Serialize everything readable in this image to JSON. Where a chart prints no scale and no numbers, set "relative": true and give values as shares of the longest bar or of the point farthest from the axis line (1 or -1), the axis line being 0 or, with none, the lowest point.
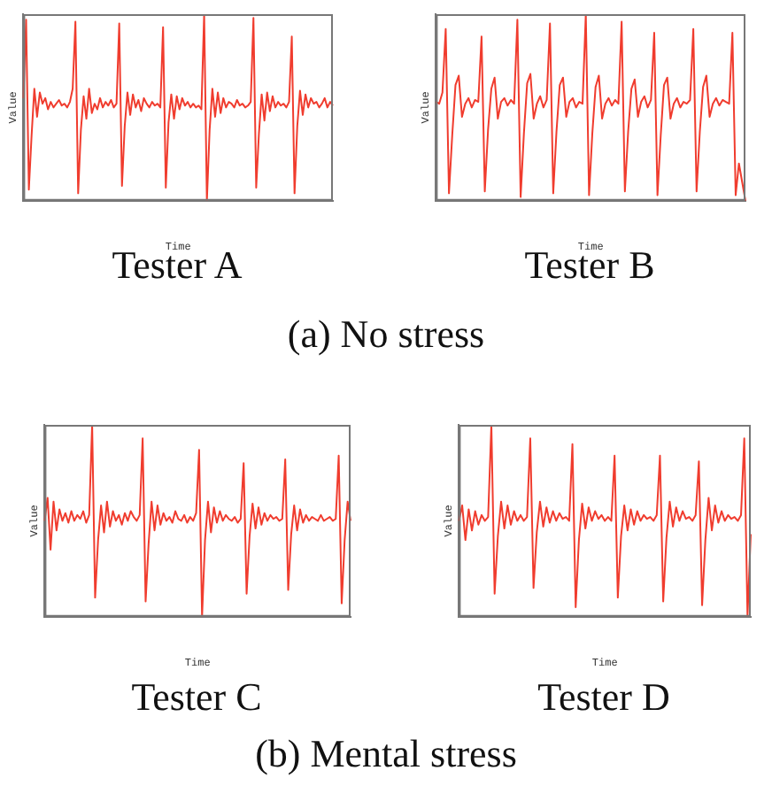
{
  "chart_data": [
    {
      "type": "line",
      "title": "Tester A",
      "xlabel": "Time",
      "ylabel": "Value",
      "relative": true,
      "grid": false,
      "legend": false,
      "marker": "none",
      "annotations": [
        "(a) No stress"
      ],
      "categories": [
        null,
        null,
        null,
        null,
        null,
        null,
        null,
        null,
        null,
        null,
        null,
        null,
        null,
        null,
        null,
        null,
        null,
        null,
        null,
        null,
        null,
        null,
        null,
        null,
        null,
        null,
        null,
        null,
        null,
        null,
        null,
        null,
        null,
        null,
        null,
        null,
        null,
        null,
        null,
        null,
        null,
        null,
        null,
        null,
        null,
        null,
        null,
        null,
        null,
        null,
        null,
        null,
        null,
        null,
        null,
        null,
        null,
        null,
        null,
        null,
        null,
        null,
        null,
        null,
        null,
        null,
        null,
        null,
        null,
        null,
        null,
        null,
        null,
        null,
        null,
        null,
        null,
        null,
        null,
        null,
        null,
        null,
        null,
        null,
        null,
        null,
        null,
        null,
        null,
        null,
        null,
        null,
        null,
        null,
        null,
        null,
        null,
        null,
        null,
        null,
        null,
        null,
        null,
        null,
        null,
        null,
        null,
        null,
        null,
        null,
        null,
        null,
        null,
        null
      ],
      "series": [
        {
          "color": "#f03c2e",
          "values": [
            0.55,
            0.97,
            0.06,
            0.35,
            0.6,
            0.45,
            0.58,
            0.52,
            0.55,
            0.49,
            0.53,
            0.5,
            0.52,
            0.54,
            0.51,
            0.52,
            0.5,
            0.53,
            0.6,
            0.96,
            0.04,
            0.38,
            0.56,
            0.44,
            0.6,
            0.47,
            0.52,
            0.49,
            0.55,
            0.5,
            0.53,
            0.51,
            0.54,
            0.5,
            0.52,
            0.95,
            0.08,
            0.4,
            0.58,
            0.46,
            0.57,
            0.5,
            0.54,
            0.48,
            0.55,
            0.52,
            0.5,
            0.53,
            0.51,
            0.52,
            0.5,
            0.93,
            0.07,
            0.42,
            0.57,
            0.44,
            0.56,
            0.49,
            0.55,
            0.51,
            0.53,
            0.5,
            0.52,
            0.5,
            0.51,
            0.49,
            1.0,
            0.0,
            0.38,
            0.6,
            0.45,
            0.58,
            0.47,
            0.55,
            0.5,
            0.53,
            0.52,
            0.5,
            0.54,
            0.51,
            0.52,
            0.5,
            0.51,
            0.53,
            0.98,
            0.07,
            0.36,
            0.57,
            0.43,
            0.58,
            0.48,
            0.56,
            0.5,
            0.53,
            0.51,
            0.52,
            0.5,
            0.53,
            0.88,
            0.04,
            0.4,
            0.59,
            0.46,
            0.57,
            0.5,
            0.55,
            0.52,
            0.53,
            0.5,
            0.52,
            0.55,
            0.5,
            0.53,
            0.51
          ]
        }
      ]
    },
    {
      "type": "line",
      "title": "Tester B",
      "xlabel": "Time",
      "ylabel": "Value",
      "relative": true,
      "grid": false,
      "legend": false,
      "marker": "none",
      "categories": [
        null,
        null,
        null,
        null,
        null,
        null,
        null,
        null,
        null,
        null,
        null,
        null,
        null,
        null,
        null,
        null,
        null,
        null,
        null,
        null,
        null,
        null,
        null,
        null,
        null,
        null,
        null,
        null,
        null,
        null,
        null,
        null,
        null,
        null,
        null,
        null,
        null,
        null,
        null,
        null,
        null,
        null,
        null,
        null,
        null,
        null,
        null,
        null,
        null,
        null,
        null,
        null,
        null,
        null,
        null,
        null,
        null,
        null,
        null,
        null,
        null,
        null,
        null,
        null,
        null,
        null,
        null,
        null,
        null,
        null,
        null,
        null,
        null,
        null,
        null,
        null,
        null,
        null,
        null,
        null,
        null,
        null,
        null,
        null,
        null,
        null,
        null,
        null,
        null,
        null,
        null,
        null,
        null,
        null,
        null,
        null
      ],
      "series": [
        {
          "color": "#f03c2e",
          "values": [
            0.53,
            0.52,
            0.58,
            0.92,
            0.04,
            0.35,
            0.62,
            0.67,
            0.45,
            0.52,
            0.55,
            0.5,
            0.54,
            0.53,
            0.88,
            0.05,
            0.38,
            0.6,
            0.66,
            0.44,
            0.53,
            0.55,
            0.51,
            0.54,
            0.52,
            0.97,
            0.02,
            0.36,
            0.63,
            0.68,
            0.44,
            0.52,
            0.56,
            0.5,
            0.54,
            0.95,
            0.04,
            0.37,
            0.62,
            0.66,
            0.45,
            0.53,
            0.55,
            0.5,
            0.53,
            0.52,
            1.0,
            0.03,
            0.36,
            0.61,
            0.67,
            0.44,
            0.52,
            0.55,
            0.51,
            0.54,
            0.52,
            0.96,
            0.05,
            0.37,
            0.6,
            0.65,
            0.45,
            0.53,
            0.56,
            0.5,
            0.54,
            0.9,
            0.03,
            0.35,
            0.62,
            0.66,
            0.44,
            0.52,
            0.55,
            0.5,
            0.53,
            0.52,
            0.54,
            0.92,
            0.05,
            0.37,
            0.61,
            0.67,
            0.45,
            0.52,
            0.55,
            0.51,
            0.54,
            0.53,
            0.52,
            0.9,
            0.03,
            0.2,
            0.1,
            0.0
          ]
        }
      ]
    },
    {
      "type": "line",
      "title": "Tester C",
      "xlabel": "Time",
      "ylabel": "Value",
      "relative": true,
      "grid": false,
      "legend": false,
      "marker": "none",
      "annotations": [
        "(b) Mental stress"
      ],
      "categories": [
        null,
        null,
        null,
        null,
        null,
        null,
        null,
        null,
        null,
        null,
        null,
        null,
        null,
        null,
        null,
        null,
        null,
        null,
        null,
        null,
        null,
        null,
        null,
        null,
        null,
        null,
        null,
        null,
        null,
        null,
        null,
        null,
        null,
        null,
        null,
        null,
        null,
        null,
        null,
        null,
        null,
        null,
        null,
        null,
        null,
        null,
        null,
        null,
        null,
        null,
        null,
        null,
        null,
        null,
        null,
        null,
        null,
        null,
        null,
        null,
        null,
        null,
        null,
        null,
        null,
        null,
        null,
        null,
        null,
        null,
        null,
        null,
        null,
        null,
        null,
        null,
        null,
        null,
        null,
        null,
        null,
        null,
        null,
        null,
        null,
        null,
        null,
        null,
        null,
        null,
        null,
        null,
        null,
        null,
        null,
        null,
        null,
        null,
        null,
        null,
        null,
        null,
        null,
        null
      ],
      "series": [
        {
          "color": "#f03c2e",
          "values": [
            0.5,
            0.62,
            0.35,
            0.6,
            0.45,
            0.56,
            0.5,
            0.54,
            0.49,
            0.55,
            0.5,
            0.53,
            0.51,
            0.55,
            0.49,
            0.53,
            1.0,
            0.1,
            0.4,
            0.58,
            0.44,
            0.6,
            0.47,
            0.55,
            0.5,
            0.53,
            0.48,
            0.54,
            0.5,
            0.55,
            0.52,
            0.5,
            0.53,
            0.93,
            0.08,
            0.38,
            0.6,
            0.45,
            0.58,
            0.48,
            0.54,
            0.5,
            0.52,
            0.49,
            0.55,
            0.51,
            0.5,
            0.53,
            0.49,
            0.52,
            0.5,
            0.54,
            0.87,
            0.0,
            0.4,
            0.6,
            0.44,
            0.57,
            0.49,
            0.55,
            0.5,
            0.53,
            0.51,
            0.5,
            0.52,
            0.49,
            0.51,
            0.8,
            0.12,
            0.42,
            0.59,
            0.46,
            0.57,
            0.48,
            0.54,
            0.5,
            0.53,
            0.51,
            0.52,
            0.5,
            0.51,
            0.82,
            0.14,
            0.43,
            0.58,
            0.45,
            0.56,
            0.49,
            0.53,
            0.5,
            0.52,
            0.51,
            0.5,
            0.53,
            0.5,
            0.51,
            0.52,
            0.5,
            0.51,
            0.84,
            0.07,
            0.4,
            0.6,
            0.5
          ]
        }
      ]
    },
    {
      "type": "line",
      "title": "Tester D",
      "xlabel": "Time",
      "ylabel": "Value",
      "relative": true,
      "grid": false,
      "legend": false,
      "marker": "none",
      "categories": [
        null,
        null,
        null,
        null,
        null,
        null,
        null,
        null,
        null,
        null,
        null,
        null,
        null,
        null,
        null,
        null,
        null,
        null,
        null,
        null,
        null,
        null,
        null,
        null,
        null,
        null,
        null,
        null,
        null,
        null,
        null,
        null,
        null,
        null,
        null,
        null,
        null,
        null,
        null,
        null,
        null,
        null,
        null,
        null,
        null,
        null,
        null,
        null,
        null,
        null,
        null,
        null,
        null,
        null,
        null,
        null,
        null,
        null,
        null,
        null,
        null,
        null,
        null,
        null,
        null,
        null,
        null,
        null,
        null,
        null,
        null,
        null,
        null,
        null,
        null,
        null,
        null,
        null,
        null,
        null,
        null,
        null,
        null,
        null,
        null,
        null,
        null,
        null,
        null,
        null,
        null
      ],
      "series": [
        {
          "color": "#f03c2e",
          "values": [
            0.5,
            0.58,
            0.4,
            0.56,
            0.45,
            0.55,
            0.48,
            0.53,
            0.5,
            0.52,
            1.0,
            0.12,
            0.42,
            0.6,
            0.46,
            0.58,
            0.48,
            0.55,
            0.5,
            0.53,
            0.5,
            0.52,
            0.93,
            0.15,
            0.44,
            0.6,
            0.47,
            0.57,
            0.49,
            0.55,
            0.5,
            0.54,
            0.51,
            0.52,
            0.5,
            0.9,
            0.05,
            0.4,
            0.59,
            0.46,
            0.57,
            0.5,
            0.55,
            0.51,
            0.53,
            0.5,
            0.52,
            0.5,
            0.84,
            0.1,
            0.42,
            0.58,
            0.45,
            0.56,
            0.48,
            0.55,
            0.5,
            0.53,
            0.51,
            0.52,
            0.5,
            0.53,
            0.84,
            0.08,
            0.41,
            0.6,
            0.47,
            0.57,
            0.5,
            0.55,
            0.51,
            0.52,
            0.5,
            0.53,
            0.81,
            0.06,
            0.4,
            0.62,
            0.45,
            0.58,
            0.49,
            0.55,
            0.5,
            0.53,
            0.51,
            0.52,
            0.5,
            0.53,
            0.93,
            0.0,
            0.43
          ]
        }
      ]
    }
  ]
}
